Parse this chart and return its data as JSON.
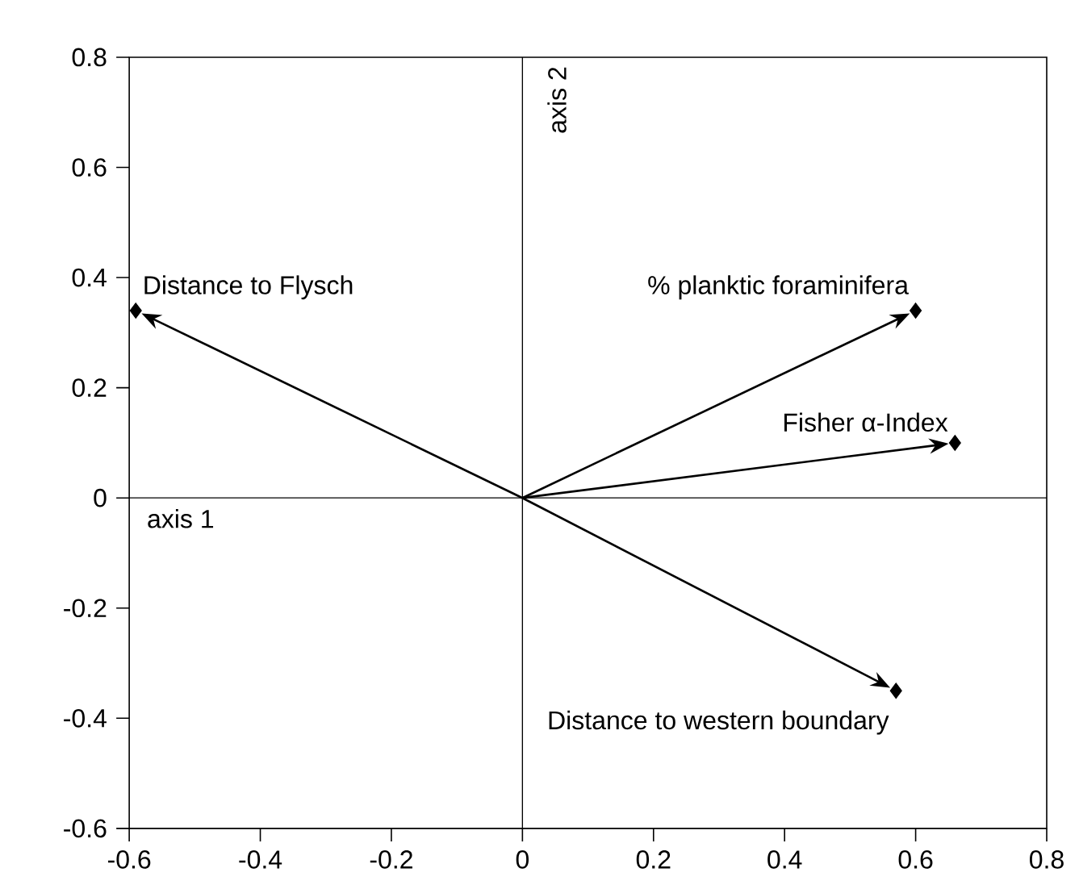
{
  "chart_data": {
    "type": "scatter",
    "marker": "diamond",
    "grid": false,
    "series": [
      {
        "color": "#000000",
        "x": [
          -0.59,
          0.6,
          0.66,
          0.57
        ],
        "values": [
          0.34,
          0.34,
          0.1,
          -0.35
        ]
      }
    ],
    "xlim": [
      -0.6,
      0.8
    ],
    "ylim": [
      -0.6,
      0.8
    ],
    "xticks": [
      -0.6,
      -0.4,
      -0.2,
      0,
      0.2,
      0.4,
      0.6,
      0.8
    ],
    "yticks": [
      -0.6,
      -0.4,
      -0.2,
      0,
      0.2,
      0.4,
      0.6,
      0.8
    ],
    "ref_lines": [
      {
        "axis": "x",
        "value": 0,
        "label": "axis 2",
        "color": "#000000"
      },
      {
        "axis": "y",
        "value": 0,
        "label": "axis 1",
        "color": "#000000"
      }
    ],
    "annotations": [
      {
        "text": "Distance to Flysch",
        "x": -0.59,
        "y": 0.34
      },
      {
        "text": "% planktic foraminifera",
        "x": 0.6,
        "y": 0.34
      },
      {
        "text": "Fisher α-Index",
        "x": 0.66,
        "y": 0.1
      },
      {
        "text": "Distance to western boundary",
        "x": 0.57,
        "y": -0.35
      }
    ]
  }
}
